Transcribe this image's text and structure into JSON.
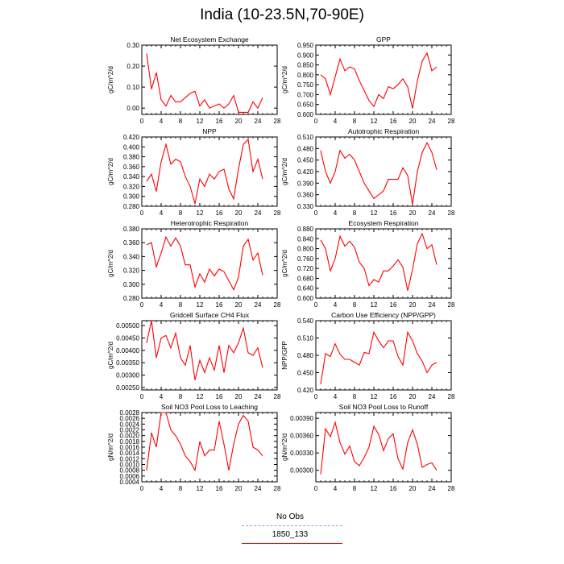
{
  "page_title": "India (10-23.5N,70-90E)",
  "legend": {
    "obs_label": "No Obs",
    "obs_color": "#9999ff",
    "model_label": "1850_133",
    "model_color": "#ff0000"
  },
  "chart_data": [
    {
      "type": "line",
      "title": "Net Ecosystem Exchange",
      "ylabel": "gC/m^2/d",
      "xlim": [
        0,
        28
      ],
      "xticks": [
        0,
        4,
        8,
        12,
        16,
        20,
        24,
        28
      ],
      "ylim": [
        -0.03,
        0.3
      ],
      "yticks": [
        "0.00",
        "0.10",
        "0.20",
        "0.30"
      ],
      "grid": false,
      "series": [
        {
          "color": "#ff0000",
          "x": [
            1,
            2,
            3,
            4,
            5,
            6,
            7,
            8,
            9,
            10,
            11,
            12,
            13,
            14,
            15,
            16,
            17,
            18,
            19,
            20,
            21,
            22,
            23,
            24,
            25
          ],
          "y": [
            0.26,
            0.09,
            0.17,
            0.04,
            0.01,
            0.06,
            0.03,
            0.03,
            0.05,
            0.07,
            0.08,
            0.01,
            0.04,
            0.0,
            0.01,
            0.02,
            0.0,
            0.02,
            0.06,
            -0.02,
            -0.02,
            -0.02,
            0.03,
            0.0,
            0.05
          ]
        }
      ]
    },
    {
      "type": "line",
      "title": "GPP",
      "ylabel": "gC/m^2/d",
      "xlim": [
        0,
        28
      ],
      "xticks": [
        0,
        4,
        8,
        12,
        16,
        20,
        24,
        28
      ],
      "ylim": [
        0.6,
        0.95
      ],
      "yticks": [
        "0.600",
        "0.650",
        "0.700",
        "0.750",
        "0.800",
        "0.850",
        "0.900",
        "0.950"
      ],
      "grid": false,
      "series": [
        {
          "color": "#ff0000",
          "x": [
            1,
            2,
            3,
            4,
            5,
            6,
            7,
            8,
            9,
            10,
            11,
            12,
            13,
            14,
            15,
            16,
            17,
            18,
            19,
            20,
            21,
            22,
            23,
            24,
            25
          ],
          "y": [
            0.8,
            0.78,
            0.7,
            0.79,
            0.88,
            0.82,
            0.84,
            0.83,
            0.77,
            0.72,
            0.67,
            0.64,
            0.7,
            0.68,
            0.74,
            0.73,
            0.75,
            0.78,
            0.74,
            0.63,
            0.77,
            0.87,
            0.91,
            0.82,
            0.84
          ]
        }
      ]
    },
    {
      "type": "line",
      "title": "NPP",
      "ylabel": "gC/m^2/d",
      "xlim": [
        0,
        28
      ],
      "xticks": [
        0,
        4,
        8,
        12,
        16,
        20,
        24,
        28
      ],
      "ylim": [
        0.28,
        0.42
      ],
      "yticks": [
        "0.280",
        "0.300",
        "0.320",
        "0.340",
        "0.360",
        "0.380",
        "0.400",
        "0.420"
      ],
      "grid": false,
      "series": [
        {
          "color": "#ff0000",
          "x": [
            1,
            2,
            3,
            4,
            5,
            6,
            7,
            8,
            9,
            10,
            11,
            12,
            13,
            14,
            15,
            16,
            17,
            18,
            19,
            20,
            21,
            22,
            23,
            24,
            25
          ],
          "y": [
            0.33,
            0.345,
            0.31,
            0.37,
            0.405,
            0.365,
            0.375,
            0.37,
            0.34,
            0.32,
            0.285,
            0.335,
            0.32,
            0.345,
            0.335,
            0.35,
            0.355,
            0.315,
            0.295,
            0.355,
            0.405,
            0.415,
            0.35,
            0.375,
            0.335
          ]
        }
      ]
    },
    {
      "type": "line",
      "title": "Autotrophic Respiration",
      "ylabel": "gC/m^2/d",
      "xlim": [
        0,
        28
      ],
      "xticks": [
        0,
        4,
        8,
        12,
        16,
        20,
        24,
        28
      ],
      "ylim": [
        0.33,
        0.51
      ],
      "yticks": [
        "0.330",
        "0.360",
        "0.390",
        "0.420",
        "0.450",
        "0.480",
        "0.510"
      ],
      "grid": false,
      "series": [
        {
          "color": "#ff0000",
          "x": [
            1,
            2,
            3,
            4,
            5,
            6,
            7,
            8,
            9,
            10,
            11,
            12,
            13,
            14,
            15,
            16,
            17,
            18,
            19,
            20,
            21,
            22,
            23,
            24,
            25
          ],
          "y": [
            0.475,
            0.42,
            0.39,
            0.42,
            0.475,
            0.455,
            0.465,
            0.45,
            0.42,
            0.39,
            0.37,
            0.35,
            0.36,
            0.37,
            0.4,
            0.4,
            0.4,
            0.43,
            0.41,
            0.335,
            0.42,
            0.47,
            0.495,
            0.47,
            0.425
          ]
        }
      ]
    },
    {
      "type": "line",
      "title": "Heterotrophic Respiration",
      "ylabel": "gC/m^2/d",
      "xlim": [
        0,
        28
      ],
      "xticks": [
        0,
        4,
        8,
        12,
        16,
        20,
        24,
        28
      ],
      "ylim": [
        0.28,
        0.38
      ],
      "yticks": [
        "0.280",
        "0.300",
        "0.320",
        "0.340",
        "0.360",
        "0.380"
      ],
      "grid": false,
      "series": [
        {
          "color": "#ff0000",
          "x": [
            1,
            2,
            3,
            4,
            5,
            6,
            7,
            8,
            9,
            10,
            11,
            12,
            13,
            14,
            15,
            16,
            17,
            18,
            19,
            20,
            21,
            22,
            23,
            24,
            25
          ],
          "y": [
            0.357,
            0.36,
            0.325,
            0.345,
            0.368,
            0.355,
            0.367,
            0.355,
            0.328,
            0.328,
            0.296,
            0.315,
            0.303,
            0.322,
            0.312,
            0.322,
            0.318,
            0.305,
            0.292,
            0.31,
            0.355,
            0.365,
            0.335,
            0.345,
            0.313
          ]
        }
      ]
    },
    {
      "type": "line",
      "title": "Ecosystem Respiration",
      "ylabel": "gC/m^2/d",
      "xlim": [
        0,
        28
      ],
      "xticks": [
        0,
        4,
        8,
        12,
        16,
        20,
        24,
        28
      ],
      "ylim": [
        0.6,
        0.88
      ],
      "yticks": [
        "0.600",
        "0.640",
        "0.680",
        "0.720",
        "0.760",
        "0.800",
        "0.840",
        "0.880"
      ],
      "grid": false,
      "series": [
        {
          "color": "#ff0000",
          "x": [
            1,
            2,
            3,
            4,
            5,
            6,
            7,
            8,
            9,
            10,
            11,
            12,
            13,
            14,
            15,
            16,
            17,
            18,
            19,
            20,
            21,
            22,
            23,
            24,
            25
          ],
          "y": [
            0.835,
            0.8,
            0.71,
            0.76,
            0.85,
            0.81,
            0.83,
            0.805,
            0.745,
            0.72,
            0.65,
            0.675,
            0.665,
            0.71,
            0.71,
            0.73,
            0.755,
            0.725,
            0.63,
            0.715,
            0.82,
            0.86,
            0.8,
            0.815,
            0.735
          ]
        }
      ]
    },
    {
      "type": "line",
      "title": "Gridcell Surface CH4 Flux",
      "ylabel": "gC/m^2/d",
      "xlim": [
        0,
        28
      ],
      "xticks": [
        0,
        4,
        8,
        12,
        16,
        20,
        24,
        28
      ],
      "ylim": [
        0.0024,
        0.0052
      ],
      "yticks": [
        "0.00250",
        "0.00300",
        "0.00350",
        "0.00400",
        "0.00450",
        "0.00500"
      ],
      "grid": false,
      "series": [
        {
          "color": "#ff0000",
          "x": [
            1,
            2,
            3,
            4,
            5,
            6,
            7,
            8,
            9,
            10,
            11,
            12,
            13,
            14,
            15,
            16,
            17,
            18,
            19,
            20,
            21,
            22,
            23,
            24,
            25
          ],
          "y": [
            0.0043,
            0.0052,
            0.0037,
            0.0045,
            0.0046,
            0.0041,
            0.0047,
            0.0037,
            0.0034,
            0.0042,
            0.0028,
            0.0036,
            0.0031,
            0.0037,
            0.0032,
            0.0042,
            0.0031,
            0.0042,
            0.0039,
            0.0043,
            0.0049,
            0.0039,
            0.0038,
            0.0041,
            0.0033
          ]
        }
      ]
    },
    {
      "type": "line",
      "title": "Carbon Use Efficiency (NPP/GPP)",
      "ylabel": "NPP/GPP",
      "xlim": [
        0,
        28
      ],
      "xticks": [
        0,
        4,
        8,
        12,
        16,
        20,
        24,
        28
      ],
      "ylim": [
        0.42,
        0.54
      ],
      "yticks": [
        "0.420",
        "0.450",
        "0.480",
        "0.510",
        "0.540"
      ],
      "grid": false,
      "series": [
        {
          "color": "#ff0000",
          "x": [
            1,
            2,
            3,
            4,
            5,
            6,
            7,
            8,
            9,
            10,
            11,
            12,
            13,
            14,
            15,
            16,
            17,
            18,
            19,
            20,
            21,
            22,
            23,
            24,
            25
          ],
          "y": [
            0.43,
            0.483,
            0.478,
            0.5,
            0.482,
            0.473,
            0.473,
            0.468,
            0.463,
            0.485,
            0.483,
            0.52,
            0.505,
            0.493,
            0.505,
            0.505,
            0.478,
            0.463,
            0.52,
            0.505,
            0.483,
            0.47,
            0.45,
            0.463,
            0.468
          ]
        }
      ]
    },
    {
      "type": "line",
      "title": "Soil NO3 Pool Loss to Leaching",
      "ylabel": "gN/m^2/d",
      "xlim": [
        0,
        28
      ],
      "xticks": [
        0,
        4,
        8,
        12,
        16,
        20,
        24,
        28
      ],
      "ylim": [
        0.0004,
        0.0028
      ],
      "yticks": [
        "0.0004",
        "0.0006",
        "0.0008",
        "0.0010",
        "0.0012",
        "0.0014",
        "0.0016",
        "0.0018",
        "0.0020",
        "0.0022",
        "0.0024",
        "0.0026",
        "0.0028"
      ],
      "grid": false,
      "series": [
        {
          "color": "#ff0000",
          "x": [
            1,
            2,
            3,
            4,
            5,
            6,
            7,
            8,
            9,
            10,
            11,
            12,
            13,
            14,
            15,
            16,
            17,
            18,
            19,
            20,
            21,
            22,
            23,
            24,
            25
          ],
          "y": [
            0.0008,
            0.0021,
            0.0016,
            0.0028,
            0.0028,
            0.0022,
            0.002,
            0.0017,
            0.0013,
            0.0011,
            0.0008,
            0.0018,
            0.0013,
            0.0015,
            0.0015,
            0.0025,
            0.0017,
            0.0008,
            0.0017,
            0.0024,
            0.0027,
            0.0025,
            0.0016,
            0.0015,
            0.0013
          ]
        }
      ]
    },
    {
      "type": "line",
      "title": "Soil NO3 Pool Loss to Runoff",
      "ylabel": "gN/m^2/d",
      "xlim": [
        0,
        28
      ],
      "xticks": [
        0,
        4,
        8,
        12,
        16,
        20,
        24,
        28
      ],
      "ylim": [
        0.0028,
        0.004
      ],
      "yticks": [
        "0.00300",
        "0.00330",
        "0.00360",
        "0.00390"
      ],
      "grid": false,
      "series": [
        {
          "color": "#ff0000",
          "x": [
            1,
            2,
            3,
            4,
            5,
            6,
            7,
            8,
            9,
            10,
            11,
            12,
            13,
            14,
            15,
            16,
            17,
            18,
            19,
            20,
            21,
            22,
            23,
            24,
            25
          ],
          "y": [
            0.00293,
            0.00372,
            0.00358,
            0.00383,
            0.00348,
            0.00328,
            0.00342,
            0.00315,
            0.00308,
            0.00322,
            0.0034,
            0.00376,
            0.00362,
            0.00334,
            0.00355,
            0.00363,
            0.0032,
            0.00302,
            0.00348,
            0.0037,
            0.00345,
            0.00305,
            0.0031,
            0.00313,
            0.003
          ]
        }
      ]
    }
  ]
}
